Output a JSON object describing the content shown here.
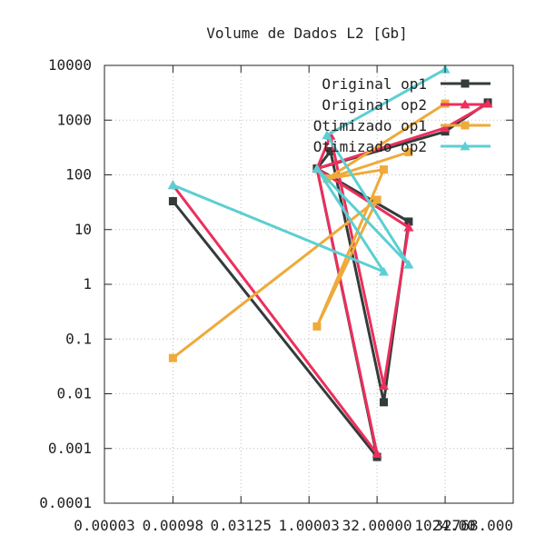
{
  "chart_data": {
    "type": "line",
    "title": "Volume de Dados L2 [Gb]",
    "xlabel": "",
    "ylabel": "",
    "x_scale": "log2",
    "y_scale": "log10",
    "xlim": [
      3e-05,
      32768.0
    ],
    "ylim": [
      0.0001,
      10000
    ],
    "grid": true,
    "legend_position": "top-right",
    "x_ticks": [
      3e-05,
      0.00098,
      0.03125,
      1.00003,
      32.0,
      1024.0,
      32768.0
    ],
    "x_tick_labels": [
      "0.00003",
      "0.00098",
      "0.03125",
      "1.00003",
      "32.00000",
      "1024.00",
      "32768.000"
    ],
    "y_ticks": [
      0.0001,
      0.001,
      0.01,
      0.1,
      1,
      10,
      100,
      1000,
      10000
    ],
    "y_tick_labels": [
      "0.0001",
      "0.001",
      "0.01",
      "0.1",
      "1",
      "10",
      "100",
      "1000",
      "10000"
    ],
    "series": [
      {
        "name": "Original op1",
        "color": "#333b3b",
        "marker": "square",
        "points": [
          [
            0.00098,
            33
          ],
          [
            32,
            0.0007
          ],
          [
            1.5,
            130
          ],
          [
            3,
            270
          ],
          [
            45,
            0.007
          ],
          [
            160,
            14
          ],
          [
            1.5,
            130
          ],
          [
            1024,
            620
          ],
          [
            9000,
            2100
          ]
        ]
      },
      {
        "name": "Original op2",
        "color": "#ec2f5c",
        "marker": "triangle",
        "points": [
          [
            0.00098,
            65
          ],
          [
            32,
            0.0008
          ],
          [
            1.5,
            130
          ],
          [
            3,
            520
          ],
          [
            45,
            0.014
          ],
          [
            160,
            11
          ],
          [
            1.5,
            130
          ],
          [
            1024,
            720
          ],
          [
            9000,
            2000
          ]
        ]
      },
      {
        "name": "Otimizado op1",
        "color": "#eeaa3a",
        "marker": "square",
        "points": [
          [
            0.00098,
            0.045
          ],
          [
            32,
            35
          ],
          [
            1.5,
            0.17
          ],
          [
            45,
            125
          ],
          [
            2.5,
            85
          ],
          [
            160,
            260
          ],
          [
            2.5,
            85
          ],
          [
            1024,
            2000
          ]
        ]
      },
      {
        "name": "Otimizado op2",
        "color": "#5ccfd2",
        "marker": "triangle",
        "points": [
          [
            0.00098,
            65
          ],
          [
            45,
            1.7
          ],
          [
            1.5,
            130
          ],
          [
            160,
            2.3
          ],
          [
            2.5,
            530
          ],
          [
            1024,
            8500
          ]
        ]
      }
    ]
  }
}
